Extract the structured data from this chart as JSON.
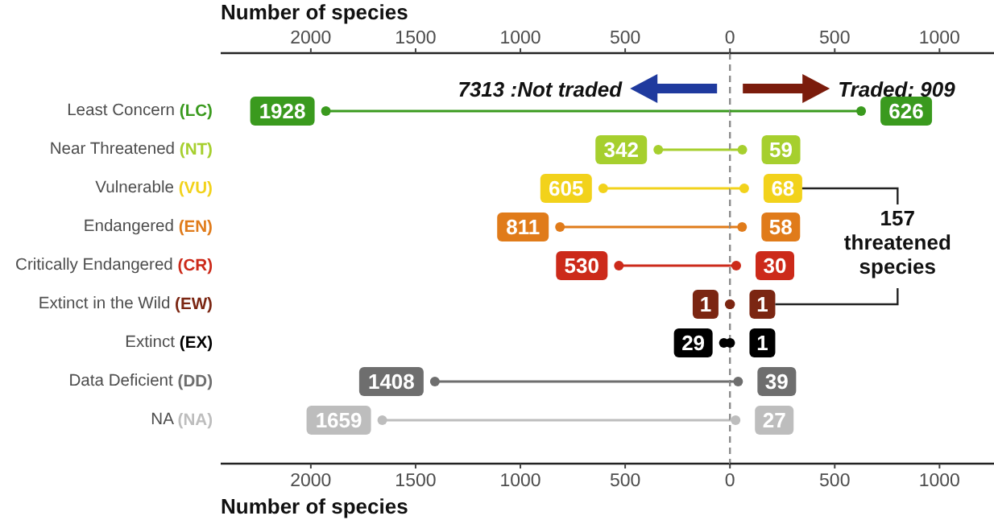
{
  "chart_data": [
    {
      "type": "lollipop",
      "orientation": "horizontal",
      "marker": "circle",
      "xlabel": "Number of species",
      "x2label": "Number of species",
      "categories": [
        "Least Concern (LC)",
        "Near Threatened (NT)",
        "Vulnerable (VU)",
        "Endangered (EN)",
        "Critically Endangered (CR)",
        "Extinct in the Wild (EW)",
        "Extinct (EX)",
        "Data Deficient (DD)",
        "NA (NA)"
      ],
      "series": [
        {
          "values": [
            1928,
            342,
            605,
            811,
            530,
            1,
            29,
            1408,
            1659
          ],
          "colors": [
            "#3a9a1e",
            "#a6cf2e",
            "#f2d21b",
            "#e07b1a",
            "#cc2a1a",
            "#7b2612",
            "#000000",
            "#6e6e6e",
            "#bdbdbd"
          ]
        }
      ],
      "data_labels": true,
      "xlim": [
        2430,
        0
      ],
      "xticks": [
        2000,
        1500,
        1000,
        500,
        0
      ],
      "x2lim": [
        2430,
        0
      ],
      "x2ticks": [
        2000,
        1500,
        1000,
        500,
        0
      ],
      "annotations": [
        "7313 :Not traded"
      ]
    },
    {
      "type": "lollipop",
      "orientation": "horizontal",
      "marker": "circle",
      "tick_labels": "x",
      "categories": [
        null,
        null,
        null,
        null,
        null,
        null,
        null,
        null,
        null
      ],
      "series": [
        {
          "values": [
            626,
            59,
            68,
            58,
            30,
            1,
            1,
            39,
            27
          ],
          "colors": [
            "#3a9a1e",
            "#a6cf2e",
            "#f2d21b",
            "#e07b1a",
            "#cc2a1a",
            "#7b2612",
            "#000000",
            "#6e6e6e",
            "#bdbdbd"
          ]
        }
      ],
      "data_labels": true,
      "xlim": [
        0,
        1260
      ],
      "xticks": [
        500,
        1000
      ],
      "x2lim": [
        0,
        1260
      ],
      "x2ticks": [
        500,
        1000
      ],
      "ref_lines": [
        {
          "axis": "x",
          "value": 0,
          "line_style": "dashed",
          "color": "#8c8c8c"
        }
      ],
      "annotations": [
        "Traded: 909",
        "157 threatened species"
      ]
    }
  ]
}
